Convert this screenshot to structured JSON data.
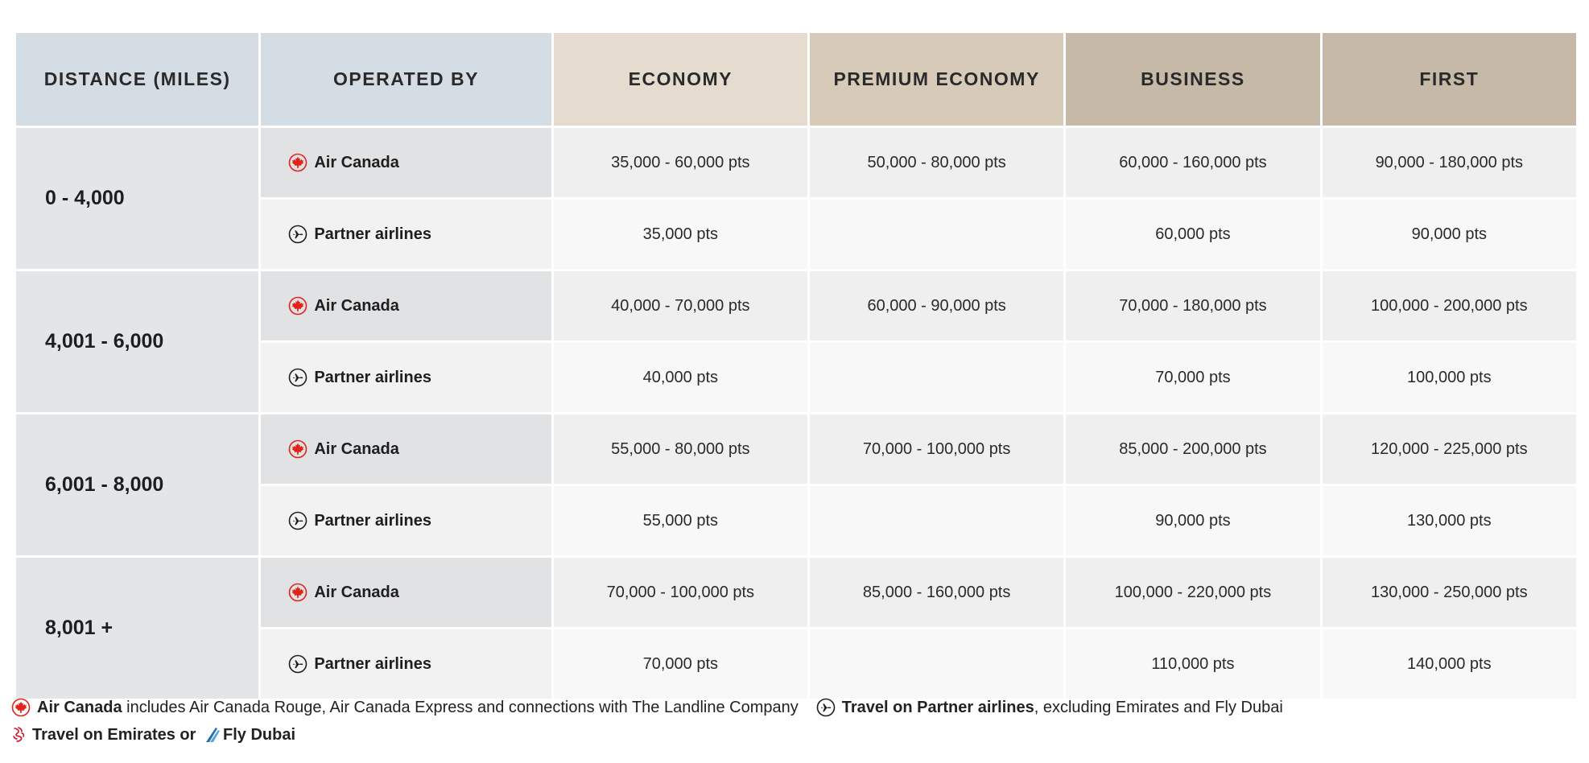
{
  "headers": {
    "distance": "DISTANCE (MILES)",
    "operated_by": "OPERATED BY",
    "economy": "ECONOMY",
    "premium_economy": "PREMIUM ECONOMY",
    "business": "BUSINESS",
    "first": "FIRST"
  },
  "rows": [
    {
      "distance": "0 - 4,000",
      "air_canada": {
        "label": "Air Canada",
        "economy": "35,000 - 60,000 pts",
        "premium": "50,000 - 80,000 pts",
        "business": "60,000 - 160,000 pts",
        "first": "90,000 - 180,000 pts"
      },
      "partner": {
        "label": "Partner airlines",
        "economy": "35,000 pts",
        "premium": "",
        "business": "60,000 pts",
        "first": "90,000 pts"
      }
    },
    {
      "distance": "4,001 - 6,000",
      "air_canada": {
        "label": "Air Canada",
        "economy": "40,000 - 70,000 pts",
        "premium": "60,000 - 90,000 pts",
        "business": "70,000 - 180,000 pts",
        "first": "100,000 - 200,000 pts"
      },
      "partner": {
        "label": "Partner airlines",
        "economy": "40,000 pts",
        "premium": "",
        "business": "70,000 pts",
        "first": "100,000 pts"
      }
    },
    {
      "distance": "6,001 - 8,000",
      "air_canada": {
        "label": "Air Canada",
        "economy": "55,000 - 80,000 pts",
        "premium": "70,000 - 100,000 pts",
        "business": "85,000 - 200,000 pts",
        "first": "120,000 - 225,000 pts"
      },
      "partner": {
        "label": "Partner airlines",
        "economy": "55,000 pts",
        "premium": "",
        "business": "90,000 pts",
        "first": "130,000 pts"
      }
    },
    {
      "distance": "8,001 +",
      "air_canada": {
        "label": "Air Canada",
        "economy": "70,000 - 100,000 pts",
        "premium": "85,000 - 160,000 pts",
        "business": "100,000 - 220,000 pts",
        "first": "130,000 - 250,000 pts"
      },
      "partner": {
        "label": "Partner airlines",
        "economy": "70,000 pts",
        "premium": "",
        "business": "110,000 pts",
        "first": "140,000 pts"
      }
    }
  ],
  "legend": {
    "ac_bold": "Air Canada",
    "ac_text": " includes Air Canada Rouge, Air Canada Express and connections with The Landline Company",
    "partner_bold": "Travel on Partner airlines",
    "partner_text": ", excluding Emirates and Fly Dubai",
    "emirates_bold": "Travel on Emirates or ",
    "flydubai_bold": "Fly Dubai"
  },
  "icons": {
    "air_canada": "maple-leaf-roundel-icon",
    "partner": "plane-circle-icon",
    "emirates": "emirates-logo-icon",
    "flydubai": "flydubai-logo-icon"
  },
  "colors": {
    "air_canada_red": "#e2231a",
    "flydubai_blue": "#1f6fb5"
  }
}
